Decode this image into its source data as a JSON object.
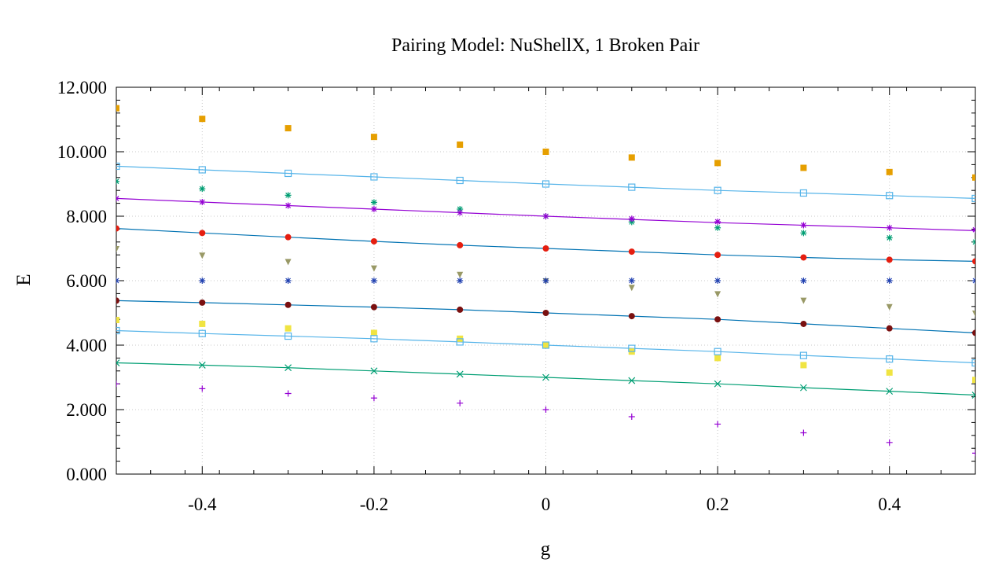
{
  "chart_data": {
    "type": "scatter",
    "title": "Pairing Model: NuShellX, 1 Broken Pair",
    "xlabel": "g",
    "ylabel": "E",
    "xlim": [
      -0.5,
      0.5
    ],
    "ylim": [
      0,
      12
    ],
    "x_ticks": [
      -0.4,
      -0.2,
      0,
      0.2,
      0.4
    ],
    "x_tick_labels": [
      "-0.4",
      "-0.2",
      "0",
      "0.2",
      "0.4"
    ],
    "y_ticks": [
      0,
      2,
      4,
      6,
      8,
      10,
      12
    ],
    "y_tick_labels": [
      "0.000",
      "2.000",
      "4.000",
      "6.000",
      "8.000",
      "10.000",
      "12.000"
    ],
    "grid": true,
    "legend": "none",
    "x": [
      -0.5,
      -0.4,
      -0.3,
      -0.2,
      -0.1,
      0.0,
      0.1,
      0.2,
      0.3,
      0.4,
      0.5
    ],
    "lines": [
      {
        "color": "#56b4e9",
        "values": [
          9.55,
          9.44,
          9.33,
          9.22,
          9.11,
          9.0,
          8.9,
          8.8,
          8.72,
          8.64,
          8.55
        ]
      },
      {
        "color": "#9400d3",
        "values": [
          8.55,
          8.44,
          8.33,
          8.22,
          8.11,
          8.0,
          7.9,
          7.8,
          7.72,
          7.64,
          7.55
        ]
      },
      {
        "color": "#0072b2",
        "values": [
          7.62,
          7.48,
          7.35,
          7.22,
          7.1,
          7.0,
          6.9,
          6.8,
          6.72,
          6.65,
          6.6
        ]
      },
      {
        "color": "#0072b2",
        "values": [
          5.38,
          5.32,
          5.25,
          5.18,
          5.1,
          5.0,
          4.9,
          4.8,
          4.66,
          4.52,
          4.38
        ]
      },
      {
        "color": "#56b4e9",
        "values": [
          4.45,
          4.36,
          4.28,
          4.2,
          4.1,
          4.0,
          3.9,
          3.8,
          3.68,
          3.57,
          3.45
        ]
      },
      {
        "color": "#009e73",
        "values": [
          3.45,
          3.38,
          3.3,
          3.2,
          3.1,
          3.0,
          2.9,
          2.8,
          2.68,
          2.57,
          2.45
        ]
      }
    ],
    "series": [
      {
        "marker": "filled-square",
        "color": "#e69f00",
        "values": [
          11.35,
          11.02,
          10.73,
          10.46,
          10.22,
          10.0,
          9.82,
          9.65,
          9.5,
          9.37,
          9.2
        ]
      },
      {
        "marker": "open-square",
        "color": "#56b4e9",
        "values": [
          9.55,
          9.44,
          9.33,
          9.22,
          9.11,
          9.0,
          8.9,
          8.8,
          8.72,
          8.64,
          8.55
        ]
      },
      {
        "marker": "asterisk",
        "color": "#009e73",
        "values": [
          9.08,
          8.85,
          8.65,
          8.43,
          8.22,
          8.0,
          7.82,
          7.64,
          7.48,
          7.33,
          7.2
        ]
      },
      {
        "marker": "asterisk",
        "color": "#9400d3",
        "values": [
          8.55,
          8.44,
          8.33,
          8.22,
          8.11,
          8.0,
          7.92,
          7.83,
          7.72,
          7.64,
          7.58
        ]
      },
      {
        "marker": "filled-circle",
        "color": "#e51e10",
        "values": [
          7.62,
          7.48,
          7.35,
          7.22,
          7.1,
          7.0,
          6.9,
          6.8,
          6.72,
          6.65,
          6.6
        ]
      },
      {
        "marker": "filled-triangle-down",
        "color": "#999966",
        "values": [
          7.0,
          6.8,
          6.6,
          6.4,
          6.2,
          6.0,
          5.8,
          5.6,
          5.4,
          5.2,
          5.0
        ]
      },
      {
        "marker": "asterisk",
        "color": "#2040b0",
        "values": [
          6.0,
          6.0,
          6.0,
          6.0,
          6.0,
          6.0,
          6.0,
          6.0,
          6.0,
          6.0,
          6.0
        ]
      },
      {
        "marker": "filled-circle",
        "color": "#7a1010",
        "values": [
          5.38,
          5.32,
          5.25,
          5.18,
          5.1,
          5.0,
          4.9,
          4.8,
          4.66,
          4.52,
          4.38
        ]
      },
      {
        "marker": "filled-square",
        "color": "#f0e442",
        "values": [
          4.78,
          4.66,
          4.52,
          4.38,
          4.2,
          4.0,
          3.8,
          3.6,
          3.38,
          3.15,
          2.92
        ]
      },
      {
        "marker": "open-square",
        "color": "#56b4e9",
        "values": [
          4.45,
          4.36,
          4.28,
          4.2,
          4.1,
          4.0,
          3.9,
          3.8,
          3.68,
          3.57,
          3.45
        ]
      },
      {
        "marker": "cross",
        "color": "#009e73",
        "values": [
          3.45,
          3.38,
          3.3,
          3.2,
          3.1,
          3.0,
          2.9,
          2.8,
          2.68,
          2.57,
          2.45
        ]
      },
      {
        "marker": "plus",
        "color": "#9400d3",
        "values": [
          2.8,
          2.65,
          2.5,
          2.36,
          2.2,
          2.0,
          1.78,
          1.55,
          1.28,
          0.98,
          0.65
        ]
      }
    ]
  }
}
